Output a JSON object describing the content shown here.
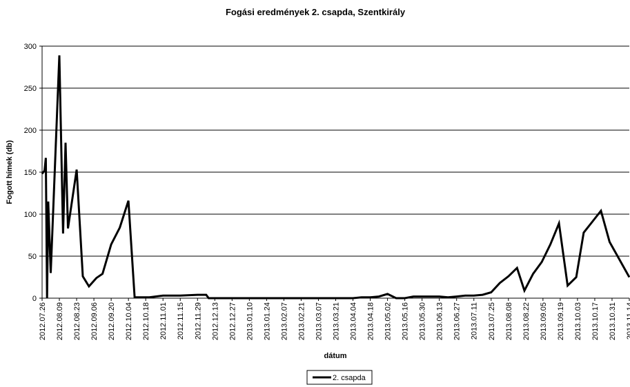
{
  "chart_data": {
    "type": "line",
    "title": "Fogási eredmények 2. csapda, Szentkirály",
    "xlabel": "dátum",
    "ylabel": "Fogott hímek (db)",
    "ylim": [
      0,
      300
    ],
    "yticks": [
      0,
      50,
      100,
      150,
      200,
      250,
      300
    ],
    "xlim": [
      "2012.07.26",
      "2013.11.14"
    ],
    "xticks": [
      "2012.07.26",
      "2012.08.09",
      "2012.08.23",
      "2012.09.06",
      "2012.09.20",
      "2012.10.04",
      "2012.10.18",
      "2012.11.01",
      "2012.11.15",
      "2012.11.29",
      "2012.12.13",
      "2012.12.27",
      "2013.01.10",
      "2013.01.24",
      "2013.02.07",
      "2013.02.21",
      "2013.03.07",
      "2013.03.21",
      "2013.04.04",
      "2013.04.18",
      "2013.05.02",
      "2013.05.16",
      "2013.05.30",
      "2013.06.13",
      "2013.06.27",
      "2013.07.11",
      "2013.07.25",
      "2013.08.08",
      "2013.08.22",
      "2013.09.05",
      "2013.09.19",
      "2013.10.03",
      "2013.10.17",
      "2013.10.31",
      "2013.11.14"
    ],
    "grid": "horizontal",
    "legend_position": "bottom",
    "series": [
      {
        "name": "2. csapda",
        "color": "#000000",
        "points": [
          [
            "2012.07.26",
            148
          ],
          [
            "2012.07.28",
            152
          ],
          [
            "2012.07.29",
            167
          ],
          [
            "2012.07.30",
            0
          ],
          [
            "2012.07.31",
            115
          ],
          [
            "2012.08.02",
            30
          ],
          [
            "2012.08.09",
            289
          ],
          [
            "2012.08.12",
            77
          ],
          [
            "2012.08.14",
            185
          ],
          [
            "2012.08.16",
            83
          ],
          [
            "2012.08.23",
            153
          ],
          [
            "2012.08.28",
            26
          ],
          [
            "2012.09.02",
            14
          ],
          [
            "2012.09.08",
            24
          ],
          [
            "2012.09.13",
            29
          ],
          [
            "2012.09.20",
            64
          ],
          [
            "2012.09.27",
            84
          ],
          [
            "2012.10.04",
            116
          ],
          [
            "2012.10.09",
            1
          ],
          [
            "2012.10.21",
            1
          ],
          [
            "2012.11.01",
            3
          ],
          [
            "2012.11.15",
            3
          ],
          [
            "2012.11.29",
            4
          ],
          [
            "2012.12.06",
            4
          ],
          [
            "2012.12.08",
            0
          ],
          [
            "2013.04.04",
            0
          ],
          [
            "2013.04.11",
            1
          ],
          [
            "2013.04.18",
            1
          ],
          [
            "2013.04.25",
            2
          ],
          [
            "2013.05.02",
            5
          ],
          [
            "2013.05.09",
            0
          ],
          [
            "2013.05.16",
            0
          ],
          [
            "2013.05.23",
            2
          ],
          [
            "2013.06.06",
            2
          ],
          [
            "2013.06.13",
            2
          ],
          [
            "2013.06.20",
            1
          ],
          [
            "2013.06.27",
            2
          ],
          [
            "2013.07.04",
            3
          ],
          [
            "2013.07.11",
            3
          ],
          [
            "2013.07.18",
            4
          ],
          [
            "2013.07.25",
            7
          ],
          [
            "2013.08.01",
            18
          ],
          [
            "2013.08.08",
            26
          ],
          [
            "2013.08.15",
            36
          ],
          [
            "2013.08.21",
            9
          ],
          [
            "2013.08.28",
            29
          ],
          [
            "2013.09.04",
            43
          ],
          [
            "2013.09.11",
            64
          ],
          [
            "2013.09.18",
            89
          ],
          [
            "2013.09.25",
            15
          ],
          [
            "2013.10.02",
            25
          ],
          [
            "2013.10.08",
            78
          ],
          [
            "2013.10.15",
            91
          ],
          [
            "2013.10.22",
            104
          ],
          [
            "2013.10.29",
            67
          ],
          [
            "2013.11.14",
            25
          ]
        ]
      }
    ]
  }
}
